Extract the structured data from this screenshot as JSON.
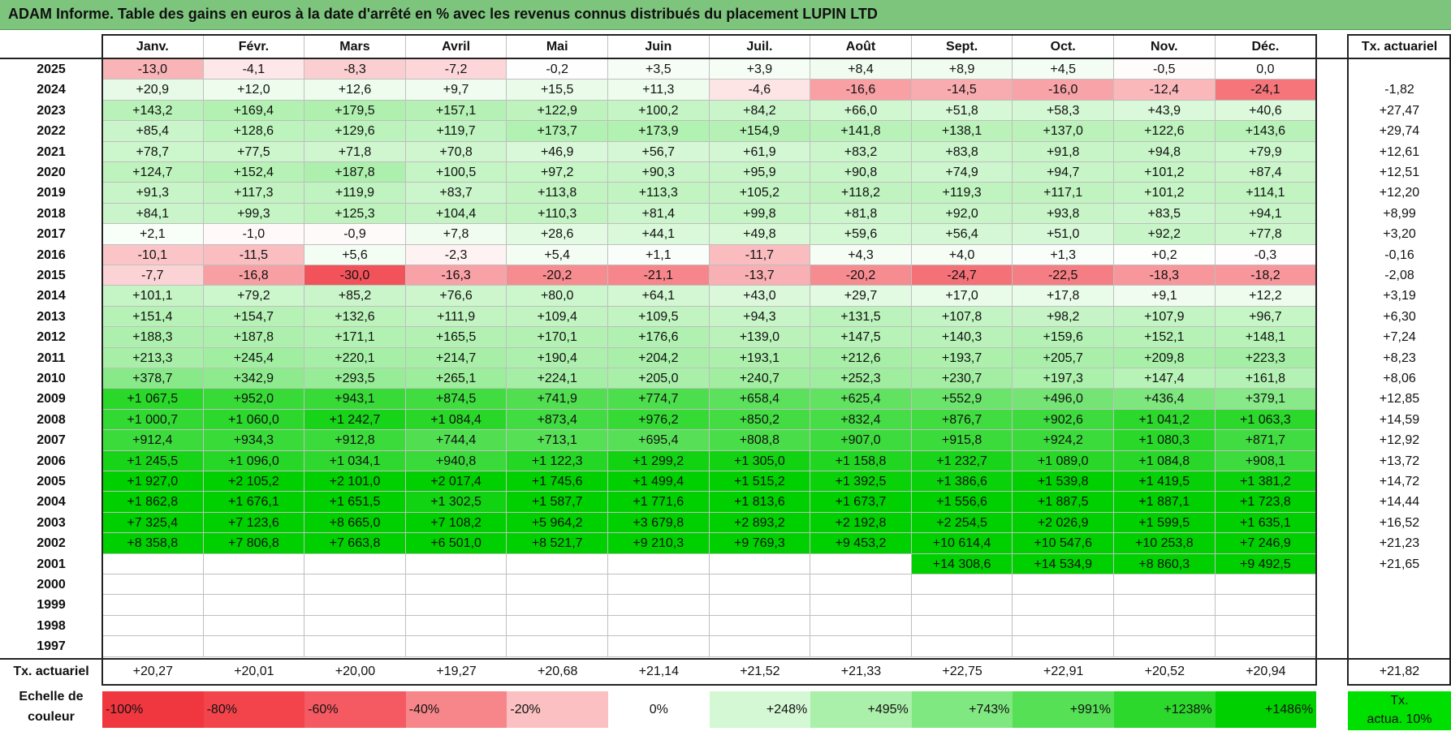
{
  "title": "ADAM Informe. Table des gains en euros à la date d'arrêté en % avec les revenus connus distribués du placement LUPIN LTD",
  "months": [
    "Janv.",
    "Févr.",
    "Mars",
    "Avril",
    "Mai",
    "Juin",
    "Juil.",
    "Août",
    "Sept.",
    "Oct.",
    "Nov.",
    "Déc."
  ],
  "tx_header": "Tx. actuariel",
  "rows": [
    {
      "year": "2025",
      "values": [
        "-13,0",
        "-4,1",
        "-8,3",
        "-7,2",
        "-0,2",
        "+3,5",
        "+3,9",
        "+8,4",
        "+8,9",
        "+4,5",
        "-0,5",
        "0,0"
      ],
      "tx": ""
    },
    {
      "year": "2024",
      "values": [
        "+20,9",
        "+12,0",
        "+12,6",
        "+9,7",
        "+15,5",
        "+11,3",
        "-4,6",
        "-16,6",
        "-14,5",
        "-16,0",
        "-12,4",
        "-24,1"
      ],
      "tx": "-1,82"
    },
    {
      "year": "2023",
      "values": [
        "+143,2",
        "+169,4",
        "+179,5",
        "+157,1",
        "+122,9",
        "+100,2",
        "+84,2",
        "+66,0",
        "+51,8",
        "+58,3",
        "+43,9",
        "+40,6"
      ],
      "tx": "+27,47"
    },
    {
      "year": "2022",
      "values": [
        "+85,4",
        "+128,6",
        "+129,6",
        "+119,7",
        "+173,7",
        "+173,9",
        "+154,9",
        "+141,8",
        "+138,1",
        "+137,0",
        "+122,6",
        "+143,6"
      ],
      "tx": "+29,74"
    },
    {
      "year": "2021",
      "values": [
        "+78,7",
        "+77,5",
        "+71,8",
        "+70,8",
        "+46,9",
        "+56,7",
        "+61,9",
        "+83,2",
        "+83,8",
        "+91,8",
        "+94,8",
        "+79,9"
      ],
      "tx": "+12,61"
    },
    {
      "year": "2020",
      "values": [
        "+124,7",
        "+152,4",
        "+187,8",
        "+100,5",
        "+97,2",
        "+90,3",
        "+95,9",
        "+90,8",
        "+74,9",
        "+94,7",
        "+101,2",
        "+87,4"
      ],
      "tx": "+12,51"
    },
    {
      "year": "2019",
      "values": [
        "+91,3",
        "+117,3",
        "+119,9",
        "+83,7",
        "+113,8",
        "+113,3",
        "+105,2",
        "+118,2",
        "+119,3",
        "+117,1",
        "+101,2",
        "+114,1"
      ],
      "tx": "+12,20"
    },
    {
      "year": "2018",
      "values": [
        "+84,1",
        "+99,3",
        "+125,3",
        "+104,4",
        "+110,3",
        "+81,4",
        "+99,8",
        "+81,8",
        "+92,0",
        "+93,8",
        "+83,5",
        "+94,1"
      ],
      "tx": "+8,99"
    },
    {
      "year": "2017",
      "values": [
        "+2,1",
        "-1,0",
        "-0,9",
        "+7,8",
        "+28,6",
        "+44,1",
        "+49,8",
        "+59,6",
        "+56,4",
        "+51,0",
        "+92,2",
        "+77,8"
      ],
      "tx": "+3,20"
    },
    {
      "year": "2016",
      "values": [
        "-10,1",
        "-11,5",
        "+5,6",
        "-2,3",
        "+5,4",
        "+1,1",
        "-11,7",
        "+4,3",
        "+4,0",
        "+1,3",
        "+0,2",
        "-0,3"
      ],
      "tx": "-0,16"
    },
    {
      "year": "2015",
      "values": [
        "-7,7",
        "-16,8",
        "-30,0",
        "-16,3",
        "-20,2",
        "-21,1",
        "-13,7",
        "-20,2",
        "-24,7",
        "-22,5",
        "-18,3",
        "-18,2"
      ],
      "tx": "-2,08"
    },
    {
      "year": "2014",
      "values": [
        "+101,1",
        "+79,2",
        "+85,2",
        "+76,6",
        "+80,0",
        "+64,1",
        "+43,0",
        "+29,7",
        "+17,0",
        "+17,8",
        "+9,1",
        "+12,2"
      ],
      "tx": "+3,19"
    },
    {
      "year": "2013",
      "values": [
        "+151,4",
        "+154,7",
        "+132,6",
        "+111,9",
        "+109,4",
        "+109,5",
        "+94,3",
        "+131,5",
        "+107,8",
        "+98,2",
        "+107,9",
        "+96,7"
      ],
      "tx": "+6,30"
    },
    {
      "year": "2012",
      "values": [
        "+188,3",
        "+187,8",
        "+171,1",
        "+165,5",
        "+170,1",
        "+176,6",
        "+139,0",
        "+147,5",
        "+140,3",
        "+159,6",
        "+152,1",
        "+148,1"
      ],
      "tx": "+7,24"
    },
    {
      "year": "2011",
      "values": [
        "+213,3",
        "+245,4",
        "+220,1",
        "+214,7",
        "+190,4",
        "+204,2",
        "+193,1",
        "+212,6",
        "+193,7",
        "+205,7",
        "+209,8",
        "+223,3"
      ],
      "tx": "+8,23"
    },
    {
      "year": "2010",
      "values": [
        "+378,7",
        "+342,9",
        "+293,5",
        "+265,1",
        "+224,1",
        "+205,0",
        "+240,7",
        "+252,3",
        "+230,7",
        "+197,3",
        "+147,4",
        "+161,8"
      ],
      "tx": "+8,06"
    },
    {
      "year": "2009",
      "values": [
        "+1 067,5",
        "+952,0",
        "+943,1",
        "+874,5",
        "+741,9",
        "+774,7",
        "+658,4",
        "+625,4",
        "+552,9",
        "+496,0",
        "+436,4",
        "+379,1"
      ],
      "tx": "+12,85"
    },
    {
      "year": "2008",
      "values": [
        "+1 000,7",
        "+1 060,0",
        "+1 242,7",
        "+1 084,4",
        "+873,4",
        "+976,2",
        "+850,2",
        "+832,4",
        "+876,7",
        "+902,6",
        "+1 041,2",
        "+1 063,3"
      ],
      "tx": "+14,59"
    },
    {
      "year": "2007",
      "values": [
        "+912,4",
        "+934,3",
        "+912,8",
        "+744,4",
        "+713,1",
        "+695,4",
        "+808,8",
        "+907,0",
        "+915,8",
        "+924,2",
        "+1 080,3",
        "+871,7"
      ],
      "tx": "+12,92"
    },
    {
      "year": "2006",
      "values": [
        "+1 245,5",
        "+1 096,0",
        "+1 034,1",
        "+940,8",
        "+1 122,3",
        "+1 299,2",
        "+1 305,0",
        "+1 158,8",
        "+1 232,7",
        "+1 089,0",
        "+1 084,8",
        "+908,1"
      ],
      "tx": "+13,72"
    },
    {
      "year": "2005",
      "values": [
        "+1 927,0",
        "+2 105,2",
        "+2 101,0",
        "+2 017,4",
        "+1 745,6",
        "+1 499,4",
        "+1 515,2",
        "+1 392,5",
        "+1 386,6",
        "+1 539,8",
        "+1 419,5",
        "+1 381,2"
      ],
      "tx": "+14,72"
    },
    {
      "year": "2004",
      "values": [
        "+1 862,8",
        "+1 676,1",
        "+1 651,5",
        "+1 302,5",
        "+1 587,7",
        "+1 771,6",
        "+1 813,6",
        "+1 673,7",
        "+1 556,6",
        "+1 887,5",
        "+1 887,1",
        "+1 723,8"
      ],
      "tx": "+14,44"
    },
    {
      "year": "2003",
      "values": [
        "+7 325,4",
        "+7 123,6",
        "+8 665,0",
        "+7 108,2",
        "+5 964,2",
        "+3 679,8",
        "+2 893,2",
        "+2 192,8",
        "+2 254,5",
        "+2 026,9",
        "+1 599,5",
        "+1 635,1"
      ],
      "tx": "+16,52"
    },
    {
      "year": "2002",
      "values": [
        "+8 358,8",
        "+7 806,8",
        "+7 663,8",
        "+6 501,0",
        "+8 521,7",
        "+9 210,3",
        "+9 769,3",
        "+9 453,2",
        "+10 614,4",
        "+10 547,6",
        "+10 253,8",
        "+7 246,9"
      ],
      "tx": "+21,23"
    },
    {
      "year": "2001",
      "values": [
        "",
        "",
        "",
        "",
        "",
        "",
        "",
        "",
        "+14 308,6",
        "+14 534,9",
        "+8 860,3",
        "+9 492,5"
      ],
      "tx": "+21,65"
    },
    {
      "year": "2000",
      "values": [
        "",
        "",
        "",
        "",
        "",
        "",
        "",
        "",
        "",
        "",
        "",
        ""
      ],
      "tx": ""
    },
    {
      "year": "1999",
      "values": [
        "",
        "",
        "",
        "",
        "",
        "",
        "",
        "",
        "",
        "",
        "",
        ""
      ],
      "tx": ""
    },
    {
      "year": "1998",
      "values": [
        "",
        "",
        "",
        "",
        "",
        "",
        "",
        "",
        "",
        "",
        "",
        ""
      ],
      "tx": ""
    },
    {
      "year": "1997",
      "values": [
        "",
        "",
        "",
        "",
        "",
        "",
        "",
        "",
        "",
        "",
        "",
        ""
      ],
      "tx": ""
    }
  ],
  "footer": {
    "label": "Tx. actuariel",
    "values": [
      "+20,27",
      "+20,01",
      "+20,00",
      "+19,27",
      "+20,68",
      "+21,14",
      "+21,52",
      "+21,33",
      "+22,75",
      "+22,91",
      "+20,52",
      "+20,94"
    ],
    "total": "+21,82"
  },
  "scale": {
    "label_line1": "Echelle de",
    "label_line2": "couleur",
    "items": [
      {
        "text": "-100%",
        "color": "#f0363f",
        "align": "left"
      },
      {
        "text": "-80%",
        "color": "#f3444c",
        "align": "left"
      },
      {
        "text": "-60%",
        "color": "#f55a62",
        "align": "left"
      },
      {
        "text": "-40%",
        "color": "#f7868a",
        "align": "left"
      },
      {
        "text": "-20%",
        "color": "#fac0c2",
        "align": "left"
      },
      {
        "text": "0%",
        "color": "#ffffff",
        "align": "center"
      },
      {
        "text": "+248%",
        "color": "#d4f7d4",
        "align": "right"
      },
      {
        "text": "+495%",
        "color": "#aaf0aa",
        "align": "right"
      },
      {
        "text": "+743%",
        "color": "#80e880",
        "align": "right"
      },
      {
        "text": "+991%",
        "color": "#55e055",
        "align": "right"
      },
      {
        "text": "+1238%",
        "color": "#2bd82b",
        "align": "right"
      },
      {
        "text": "+1486%",
        "color": "#00d000",
        "align": "right"
      }
    ],
    "tx_line1": "Tx.",
    "tx_line2": "actua. 10%",
    "tx_color": "#00e000"
  },
  "colors": {
    "banner": "#7dc47d",
    "negative_max": "#f0363f",
    "positive_max": "#00d000"
  }
}
